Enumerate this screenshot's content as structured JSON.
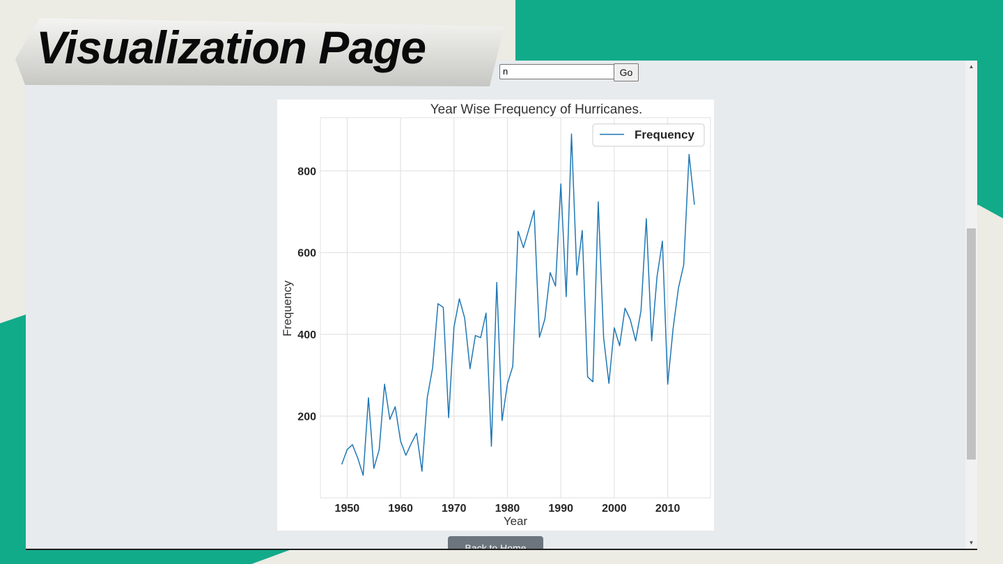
{
  "page": {
    "title": "Visualization Page",
    "colors": {
      "accent": "#12ab8a",
      "background": "#ecebe4",
      "frame_bg": "#e7ebee",
      "line": "#1f77b4"
    }
  },
  "controls": {
    "select_value": "n",
    "go_label": "Go",
    "bottom_button_label": "Back to Home"
  },
  "icons": {
    "select_chevron": "chevron-down-icon",
    "scroll_up": "scroll-up-icon",
    "scroll_down": "scroll-down-icon"
  },
  "chart_data": {
    "type": "line",
    "title": "Year Wise Frequency of Hurricanes.",
    "xlabel": "Year",
    "ylabel": "Frequency",
    "xlim": [
      1945,
      2018
    ],
    "ylim": [
      0,
      930
    ],
    "x_ticks": [
      1950,
      1960,
      1970,
      1980,
      1990,
      2000,
      2010
    ],
    "y_ticks": [
      200,
      400,
      600,
      800
    ],
    "grid": true,
    "legend_position": "top-right",
    "series": [
      {
        "name": "Frequency",
        "color": "#1f77b4",
        "x": [
          1949,
          1950,
          1951,
          1952,
          1953,
          1954,
          1955,
          1956,
          1957,
          1958,
          1959,
          1960,
          1961,
          1962,
          1963,
          1964,
          1965,
          1966,
          1967,
          1968,
          1969,
          1970,
          1971,
          1972,
          1973,
          1974,
          1975,
          1976,
          1977,
          1978,
          1979,
          1980,
          1981,
          1982,
          1983,
          1984,
          1985,
          1986,
          1987,
          1988,
          1989,
          1990,
          1991,
          1992,
          1993,
          1994,
          1995,
          1996,
          1997,
          1998,
          1999,
          2000,
          2001,
          2002,
          2003,
          2004,
          2005,
          2006,
          2007,
          2008,
          2009,
          2010,
          2011,
          2012,
          2013,
          2014,
          2015
        ],
        "values": [
          82,
          118,
          130,
          97,
          55,
          245,
          72,
          118,
          278,
          192,
          223,
          139,
          104,
          133,
          158,
          65,
          245,
          318,
          475,
          466,
          196,
          418,
          487,
          440,
          316,
          397,
          392,
          452,
          126,
          527,
          189,
          279,
          322,
          652,
          612,
          657,
          703,
          393,
          437,
          551,
          518,
          768,
          492,
          890,
          545,
          654,
          296,
          284,
          724,
          392,
          280,
          416,
          372,
          464,
          436,
          384,
          458,
          683,
          384,
          541,
          628,
          278,
          413,
          513,
          570,
          840,
          717
        ]
      }
    ]
  }
}
